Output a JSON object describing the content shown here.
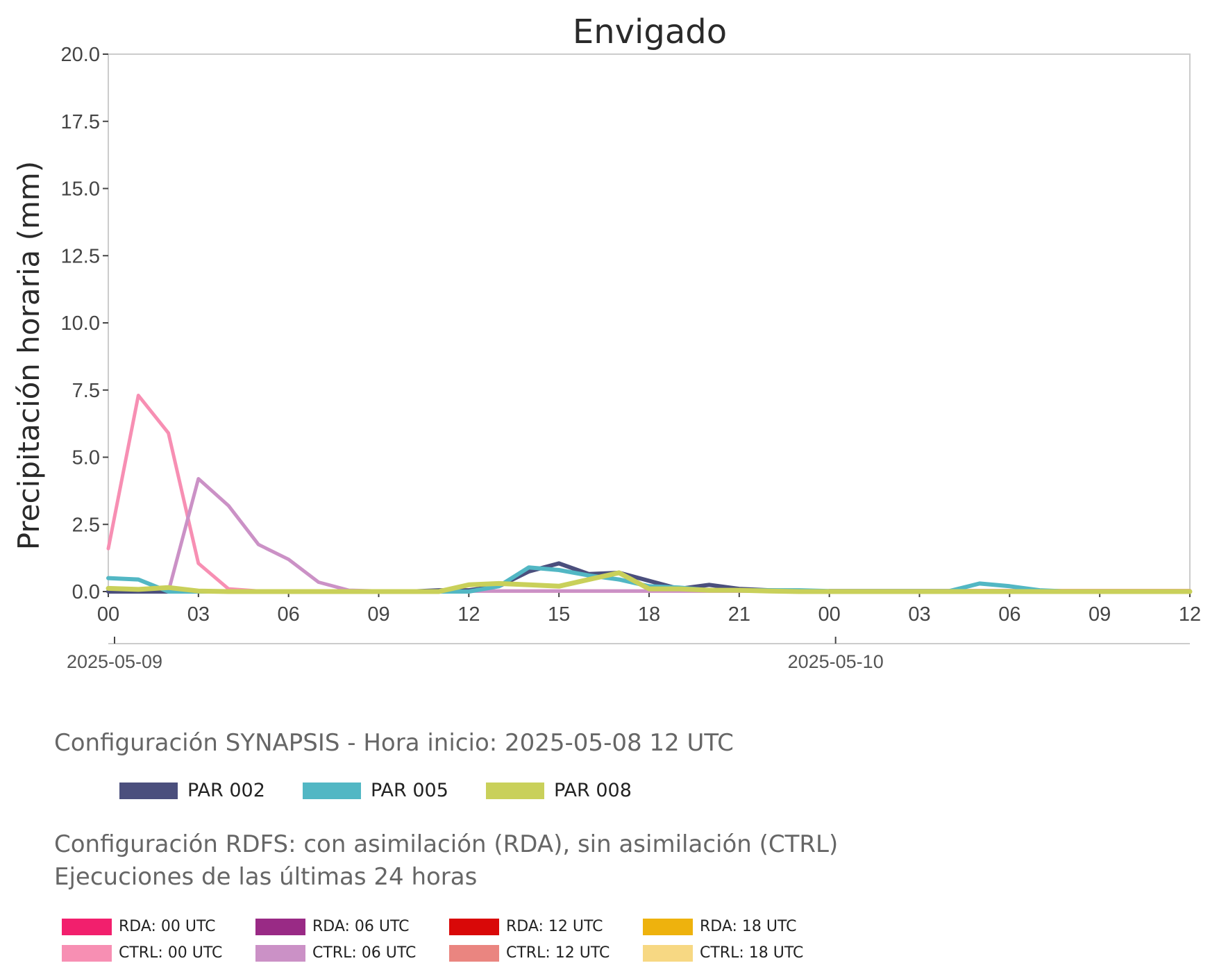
{
  "chart_data": {
    "type": "line",
    "title": "Envigado",
    "ylabel": "Precipitación horaria (mm)",
    "xlabel": "",
    "ylim": [
      0,
      20
    ],
    "yticks": [
      "0.0",
      "2.5",
      "5.0",
      "7.5",
      "10.0",
      "12.5",
      "15.0",
      "17.5",
      "20.0"
    ],
    "x_hours": [
      0,
      1,
      2,
      3,
      4,
      5,
      6,
      7,
      8,
      9,
      10,
      11,
      12,
      13,
      14,
      15,
      16,
      17,
      18,
      19,
      20,
      21,
      22,
      23,
      24,
      25,
      26,
      27,
      28,
      29,
      30,
      31,
      32,
      33,
      34,
      35,
      36
    ],
    "xticks": [
      "00",
      "03",
      "06",
      "09",
      "12",
      "15",
      "18",
      "21",
      "00",
      "03",
      "06",
      "09",
      "12"
    ],
    "date_labels": [
      "2025-05-09",
      "2025-05-10"
    ],
    "grid": false,
    "series": [
      {
        "name": "PAR 002",
        "color": "#4b4f7d",
        "width": 6,
        "values": [
          0,
          0,
          0,
          0,
          0,
          0,
          0,
          0,
          0,
          0,
          0,
          0.05,
          0.05,
          0.2,
          0.75,
          1.05,
          0.65,
          0.7,
          0.4,
          0.1,
          0.25,
          0.1,
          0.05,
          0.02,
          0,
          0,
          0,
          0,
          0,
          0,
          0,
          0,
          0,
          0,
          0,
          0,
          0
        ]
      },
      {
        "name": "PAR 005",
        "color": "#52b7c4",
        "width": 6,
        "values": [
          0.5,
          0.45,
          0,
          0,
          0,
          0,
          0,
          0,
          0,
          0,
          0,
          0,
          0,
          0.2,
          0.9,
          0.8,
          0.6,
          0.45,
          0.2,
          0.15,
          0.05,
          0.05,
          0.05,
          0.05,
          0.02,
          0.02,
          0.02,
          0.02,
          0.02,
          0.3,
          0.2,
          0.05,
          0,
          0,
          0,
          0,
          0
        ]
      },
      {
        "name": "PAR 008",
        "color": "#c9d05a",
        "width": 7,
        "values": [
          0.12,
          0.08,
          0.15,
          0.02,
          0,
          0,
          0,
          0,
          0,
          0,
          0,
          0,
          0.25,
          0.3,
          0.25,
          0.2,
          0.45,
          0.7,
          0.1,
          0.1,
          0.05,
          0.05,
          0.02,
          0,
          0,
          0,
          0,
          0,
          0,
          0,
          0,
          0,
          0,
          0,
          0,
          0,
          0
        ]
      },
      {
        "name": "CTRL: 00 UTC",
        "color": "#f78fb3",
        "width": 5,
        "values": [
          1.6,
          7.3,
          5.9,
          1.05,
          0.1,
          0.02,
          0.02,
          0.02,
          0.02,
          0.02,
          0.02,
          0.02,
          0.02,
          0.02,
          0.02,
          0.02,
          0.02,
          0.02,
          0.02,
          0.02,
          0.02,
          0.02,
          0.02,
          0.02,
          0.02,
          0.02,
          0.02,
          0.02,
          0.02,
          0.02,
          0.02,
          0.02,
          0.02,
          0.02,
          0.02,
          0.02,
          0.02
        ]
      },
      {
        "name": "CTRL: 06 UTC",
        "color": "#cb91c6",
        "width": 5,
        "values": [
          null,
          null,
          0,
          4.2,
          3.2,
          1.75,
          1.2,
          0.35,
          0.05,
          0.02,
          0.02,
          0.02,
          0.02,
          0.02,
          0.02,
          0.02,
          0.02,
          0.02,
          0.02,
          0.02,
          0.02,
          0.02,
          0.02,
          0.02,
          0.02,
          0.02,
          0.02,
          0.02,
          0.02,
          0.02,
          0.02,
          0.02,
          0.02,
          0.02,
          0.02,
          0.02,
          0.02
        ]
      },
      {
        "name": "CTRL: 12 UTC",
        "color": "#ea8580",
        "width": 4,
        "values": [
          null,
          null,
          null,
          null,
          null,
          null,
          null,
          null,
          null,
          null,
          null,
          null,
          null,
          null,
          null,
          null,
          null,
          null,
          null,
          null,
          null,
          null,
          null,
          null,
          0.05,
          0.05,
          0.05,
          0.05,
          0.05,
          0.05,
          0.05,
          0.05,
          0.05,
          0.05,
          0.05,
          0.05,
          0.05
        ]
      }
    ]
  },
  "captions": {
    "synapsis": "Configuración SYNAPSIS - Hora inicio: 2025-05-08 12 UTC",
    "rdfs_line1": "Configuración RDFS: con asimilación (RDA), sin asimilación (CTRL)",
    "rdfs_line2": " Ejecuciones de las últimas 24 horas"
  },
  "legend_synapsis": [
    {
      "label": "PAR 002",
      "color": "#4b4f7d"
    },
    {
      "label": "PAR 005",
      "color": "#52b7c4"
    },
    {
      "label": "PAR 008",
      "color": "#c9d05a"
    }
  ],
  "legend_rdfs": [
    {
      "label": "RDA: 00 UTC",
      "color": "#f21f6d"
    },
    {
      "label": "RDA: 06 UTC",
      "color": "#992a85"
    },
    {
      "label": "RDA: 12 UTC",
      "color": "#d90808"
    },
    {
      "label": "RDA: 18 UTC",
      "color": "#eeb20d"
    },
    {
      "label": "CTRL: 00 UTC",
      "color": "#f78fb3"
    },
    {
      "label": "CTRL: 06 UTC",
      "color": "#cb91c6"
    },
    {
      "label": "CTRL: 12 UTC",
      "color": "#ea8580"
    },
    {
      "label": "CTRL: 18 UTC",
      "color": "#f7d883"
    }
  ]
}
